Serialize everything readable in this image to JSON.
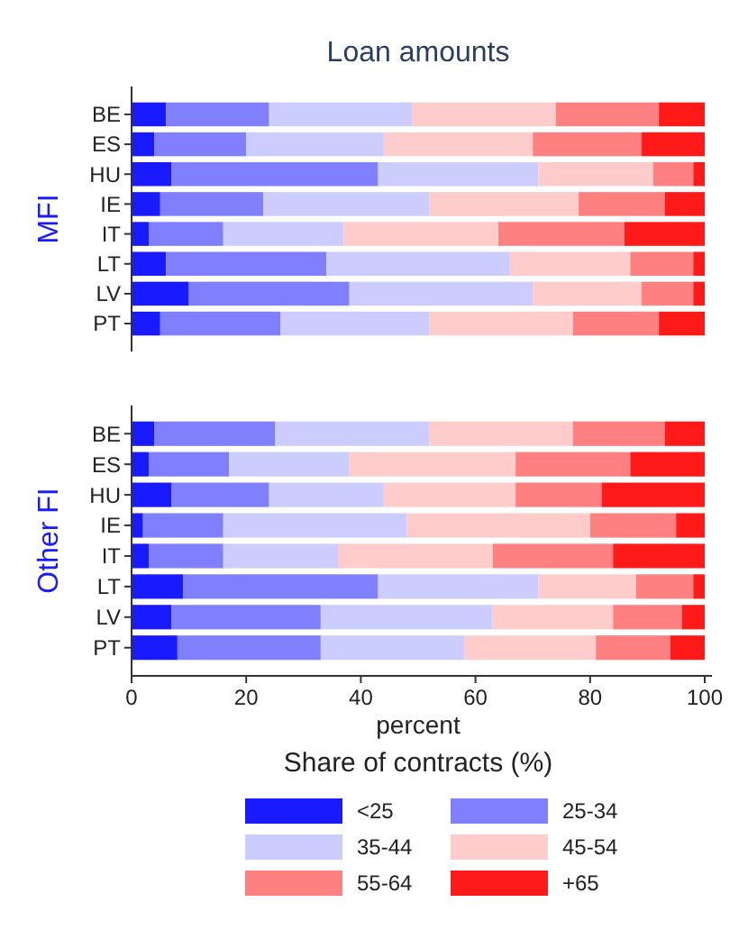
{
  "chart_data": [
    {
      "type": "bar",
      "title": "Loan amounts",
      "ylabel": "MFI",
      "orientation": "horizontal",
      "stacked": true,
      "categories": [
        "BE",
        "ES",
        "HU",
        "IE",
        "IT",
        "LT",
        "LV",
        "PT"
      ],
      "xlim": [
        0,
        100
      ],
      "tick_labels": "y",
      "legend": false,
      "series": [
        {
          "color": "#1a1aff",
          "values": [
            6,
            4,
            7,
            5,
            3,
            6,
            10,
            5
          ]
        },
        {
          "color": "#8080ff",
          "values": [
            18,
            16,
            36,
            18,
            13,
            28,
            28,
            21
          ]
        },
        {
          "color": "#ccccff",
          "values": [
            25,
            24,
            28,
            29,
            21,
            32,
            32,
            26
          ]
        },
        {
          "color": "#ffcccc",
          "values": [
            25,
            26,
            20,
            26,
            27,
            21,
            19,
            25
          ]
        },
        {
          "color": "#ff8080",
          "values": [
            18,
            19,
            7,
            15,
            22,
            11,
            9,
            15
          ]
        },
        {
          "color": "#ff1a1a",
          "values": [
            8,
            11,
            2,
            7,
            14,
            2,
            2,
            8
          ]
        }
      ]
    },
    {
      "type": "bar",
      "ylabel": "Other FI",
      "xlabel": "percent",
      "legend_title": "Share of contracts (%)",
      "legend": "bottom",
      "orientation": "horizontal",
      "stacked": true,
      "categories": [
        "BE",
        "ES",
        "HU",
        "IE",
        "IT",
        "LT",
        "LV",
        "PT"
      ],
      "xlim": [
        0,
        100
      ],
      "xticks": [
        0,
        20,
        40,
        60,
        80,
        100
      ],
      "series": [
        {
          "name": "<25",
          "color": "#1a1aff",
          "values": [
            4,
            3,
            7,
            2,
            3,
            9,
            7,
            8
          ]
        },
        {
          "name": "25-34",
          "color": "#8080ff",
          "values": [
            21,
            14,
            17,
            14,
            13,
            34,
            26,
            25
          ]
        },
        {
          "name": "35-44",
          "color": "#ccccff",
          "values": [
            27,
            21,
            20,
            32,
            20,
            28,
            30,
            25
          ]
        },
        {
          "name": "45-54",
          "color": "#ffcccc",
          "values": [
            25,
            29,
            23,
            32,
            27,
            17,
            21,
            23
          ]
        },
        {
          "name": "55-64",
          "color": "#ff8080",
          "values": [
            16,
            20,
            15,
            15,
            21,
            10,
            12,
            13
          ]
        },
        {
          "name": "+65",
          "color": "#ff1a1a",
          "values": [
            7,
            13,
            18,
            5,
            16,
            2,
            4,
            6
          ]
        }
      ]
    }
  ]
}
